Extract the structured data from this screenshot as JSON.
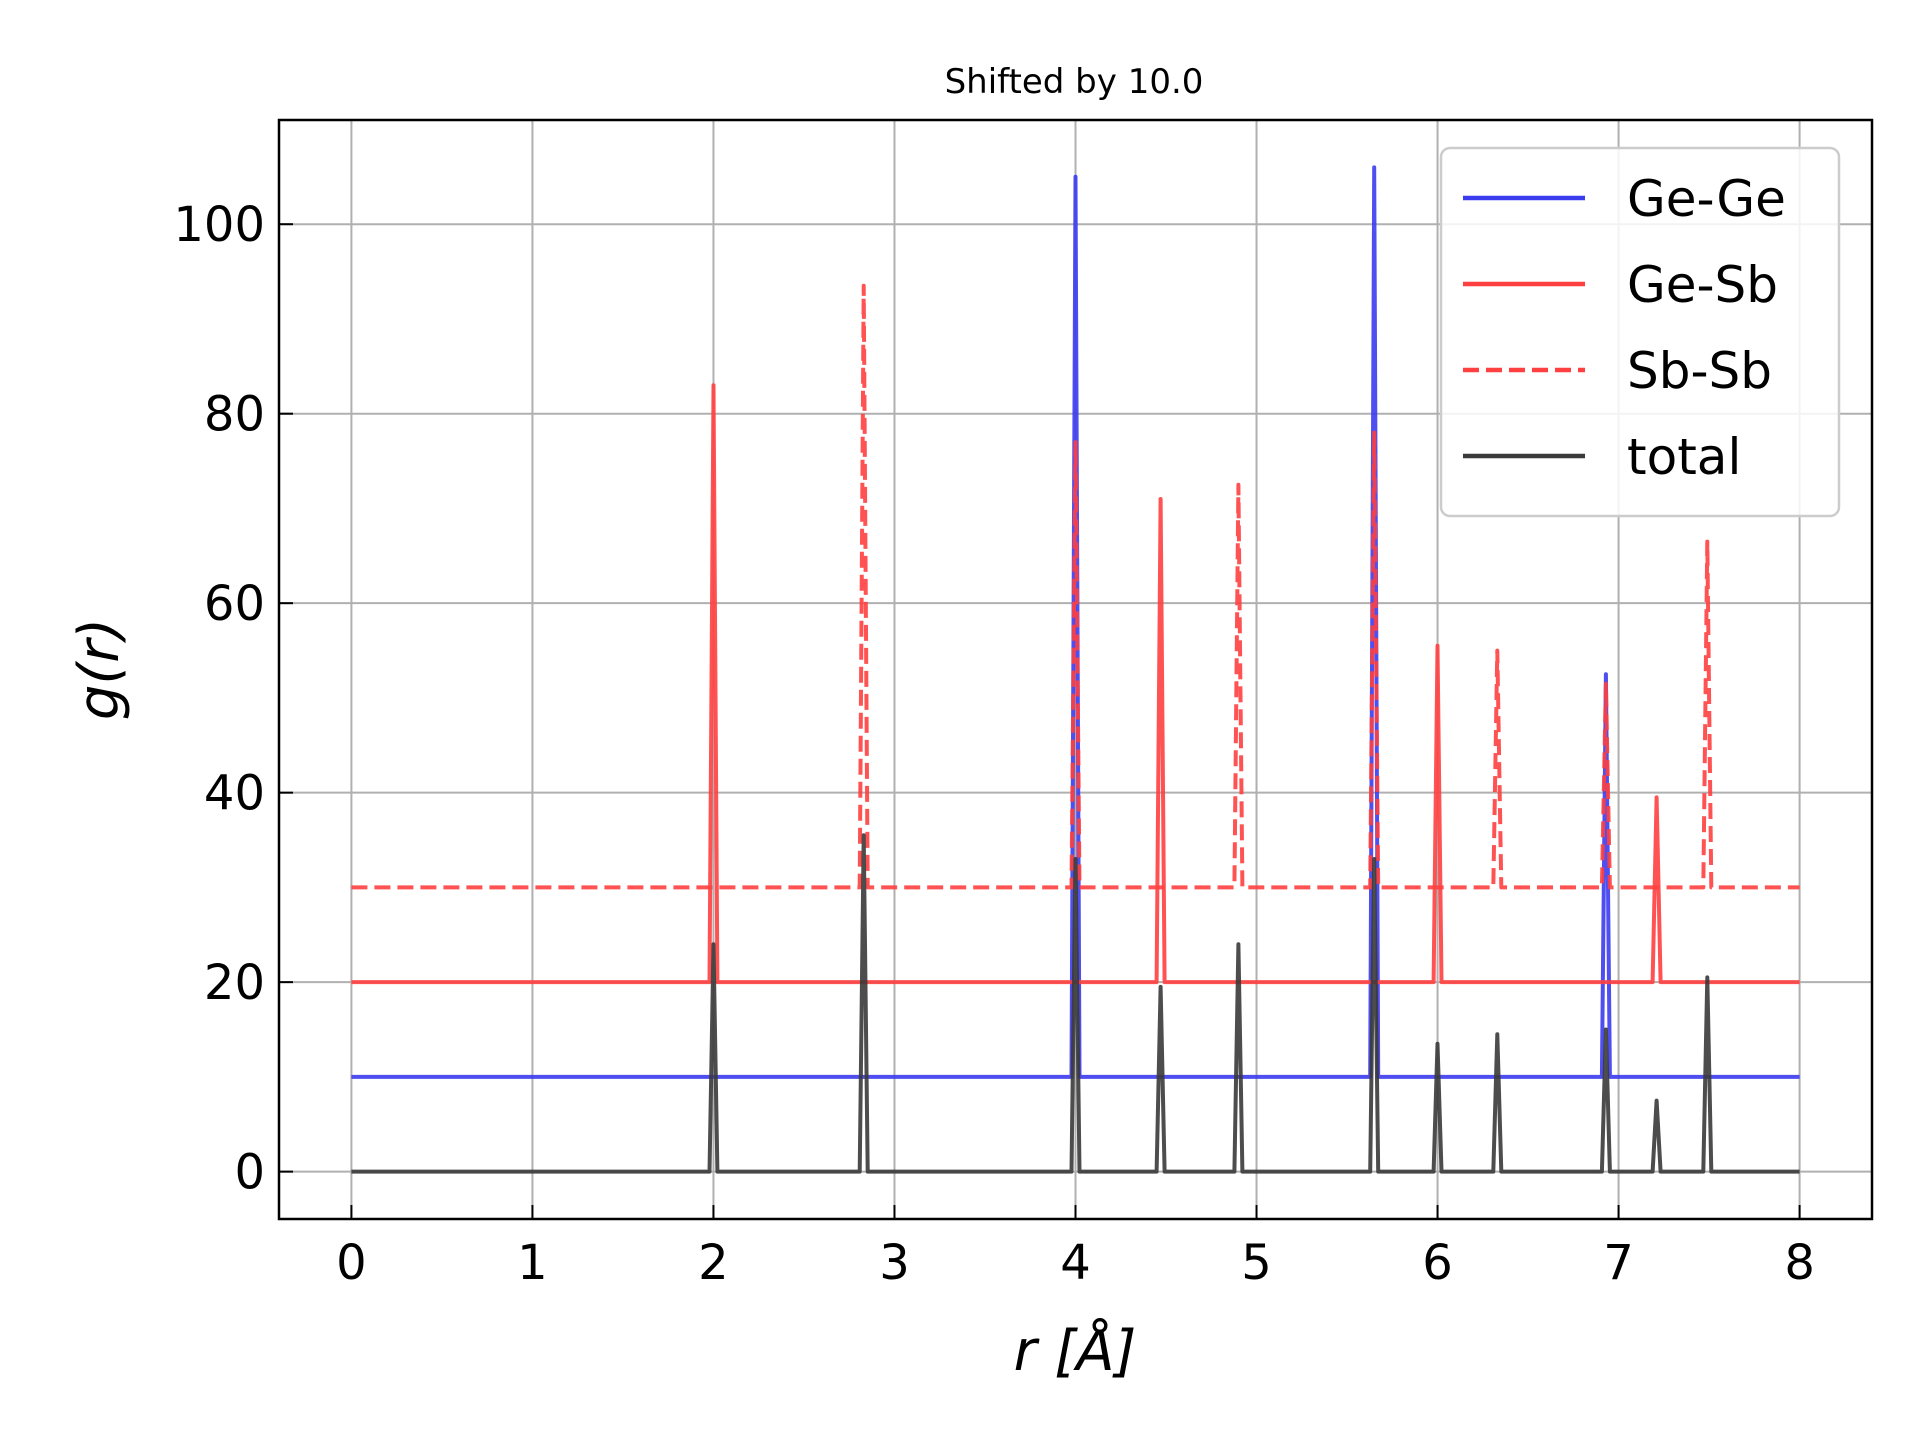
{
  "chart_data": {
    "type": "line",
    "title": "Shifted by 10.0",
    "xlabel": "r [Å]",
    "ylabel": "g(r)",
    "xlim": [
      -0.4,
      8.4
    ],
    "ylim": [
      -5,
      111
    ],
    "xticks": [
      0,
      1,
      2,
      3,
      4,
      5,
      6,
      7,
      8
    ],
    "yticks": [
      0,
      20,
      40,
      60,
      80,
      100
    ],
    "grid": true,
    "legend_position": "top-right",
    "x_range": [
      0,
      8
    ],
    "series": [
      {
        "name": "Ge-Ge",
        "color": "#3b3bf0",
        "dash": "solid",
        "baseline": 10,
        "peaks": [
          [
            4.0,
            105
          ],
          [
            5.65,
            106
          ],
          [
            6.93,
            52.5
          ]
        ]
      },
      {
        "name": "Ge-Sb",
        "color": "#ff4040",
        "dash": "solid",
        "baseline": 20,
        "peaks": [
          [
            2.0,
            83
          ],
          [
            4.47,
            71
          ],
          [
            6.0,
            55.5
          ],
          [
            7.21,
            39.5
          ]
        ]
      },
      {
        "name": "Sb-Sb",
        "color": "#ff4040",
        "dash": "dashed",
        "baseline": 30,
        "peaks": [
          [
            2.83,
            93.5
          ],
          [
            4.0,
            77
          ],
          [
            4.9,
            72.5
          ],
          [
            5.65,
            78
          ],
          [
            6.33,
            55
          ],
          [
            6.93,
            51.5
          ],
          [
            7.49,
            66.5
          ]
        ]
      },
      {
        "name": "total",
        "color": "#3a3a3a",
        "dash": "solid",
        "baseline": 0,
        "peaks": [
          [
            2.0,
            24
          ],
          [
            2.83,
            35.5
          ],
          [
            4.0,
            33
          ],
          [
            4.47,
            19.5
          ],
          [
            4.9,
            24
          ],
          [
            5.65,
            33
          ],
          [
            6.0,
            13.5
          ],
          [
            6.33,
            14.5
          ],
          [
            6.93,
            15
          ],
          [
            7.21,
            7.5
          ],
          [
            7.49,
            20.5
          ]
        ]
      }
    ]
  }
}
